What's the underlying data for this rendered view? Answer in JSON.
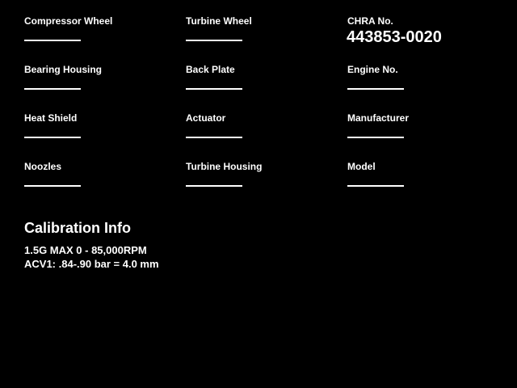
{
  "colors": {
    "background": "#000000",
    "text": "#ffffff"
  },
  "form": {
    "columns": [
      {
        "fields": [
          {
            "label": "Compressor Wheel"
          },
          {
            "label": "Bearing Housing"
          },
          {
            "label": "Heat Shield"
          },
          {
            "label": "Noozles"
          }
        ]
      },
      {
        "fields": [
          {
            "label": "Turbine Wheel"
          },
          {
            "label": "Back Plate"
          },
          {
            "label": "Actuator"
          },
          {
            "label": "Turbine Housing"
          }
        ]
      },
      {
        "fields": [
          {
            "label": "CHRA No.",
            "value": "443853-0020"
          },
          {
            "label": "Engine No."
          },
          {
            "label": "Manufacturer"
          },
          {
            "label": "Model"
          }
        ]
      }
    ]
  },
  "calibration": {
    "title": "Calibration Info",
    "lines": [
      "1.5G MAX 0 - 85,000RPM",
      "ACV1: .84-.90 bar = 4.0 mm"
    ]
  }
}
